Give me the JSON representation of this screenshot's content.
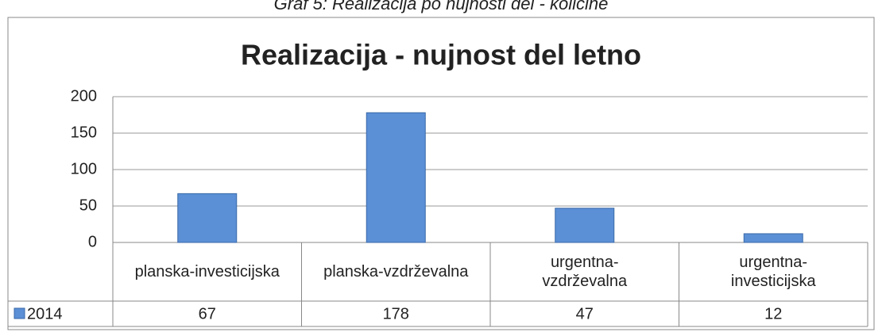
{
  "chart_data": {
    "type": "bar",
    "caption": "Graf 5: Realizacija po nujnosti del - količine",
    "title": "Realizacija  - nujnost del letno",
    "categories": [
      "planska-investicijska",
      "planska-vzdrževalna",
      "urgentna-\nvzdrževalna",
      "urgentna-\ninvesticijska"
    ],
    "series": [
      {
        "name": "2014",
        "color": "#5b8fd6",
        "values": [
          67,
          178,
          47,
          12
        ]
      }
    ],
    "ylim": [
      0,
      200
    ],
    "yticks": [
      0,
      50,
      100,
      150,
      200
    ],
    "grid": true
  }
}
